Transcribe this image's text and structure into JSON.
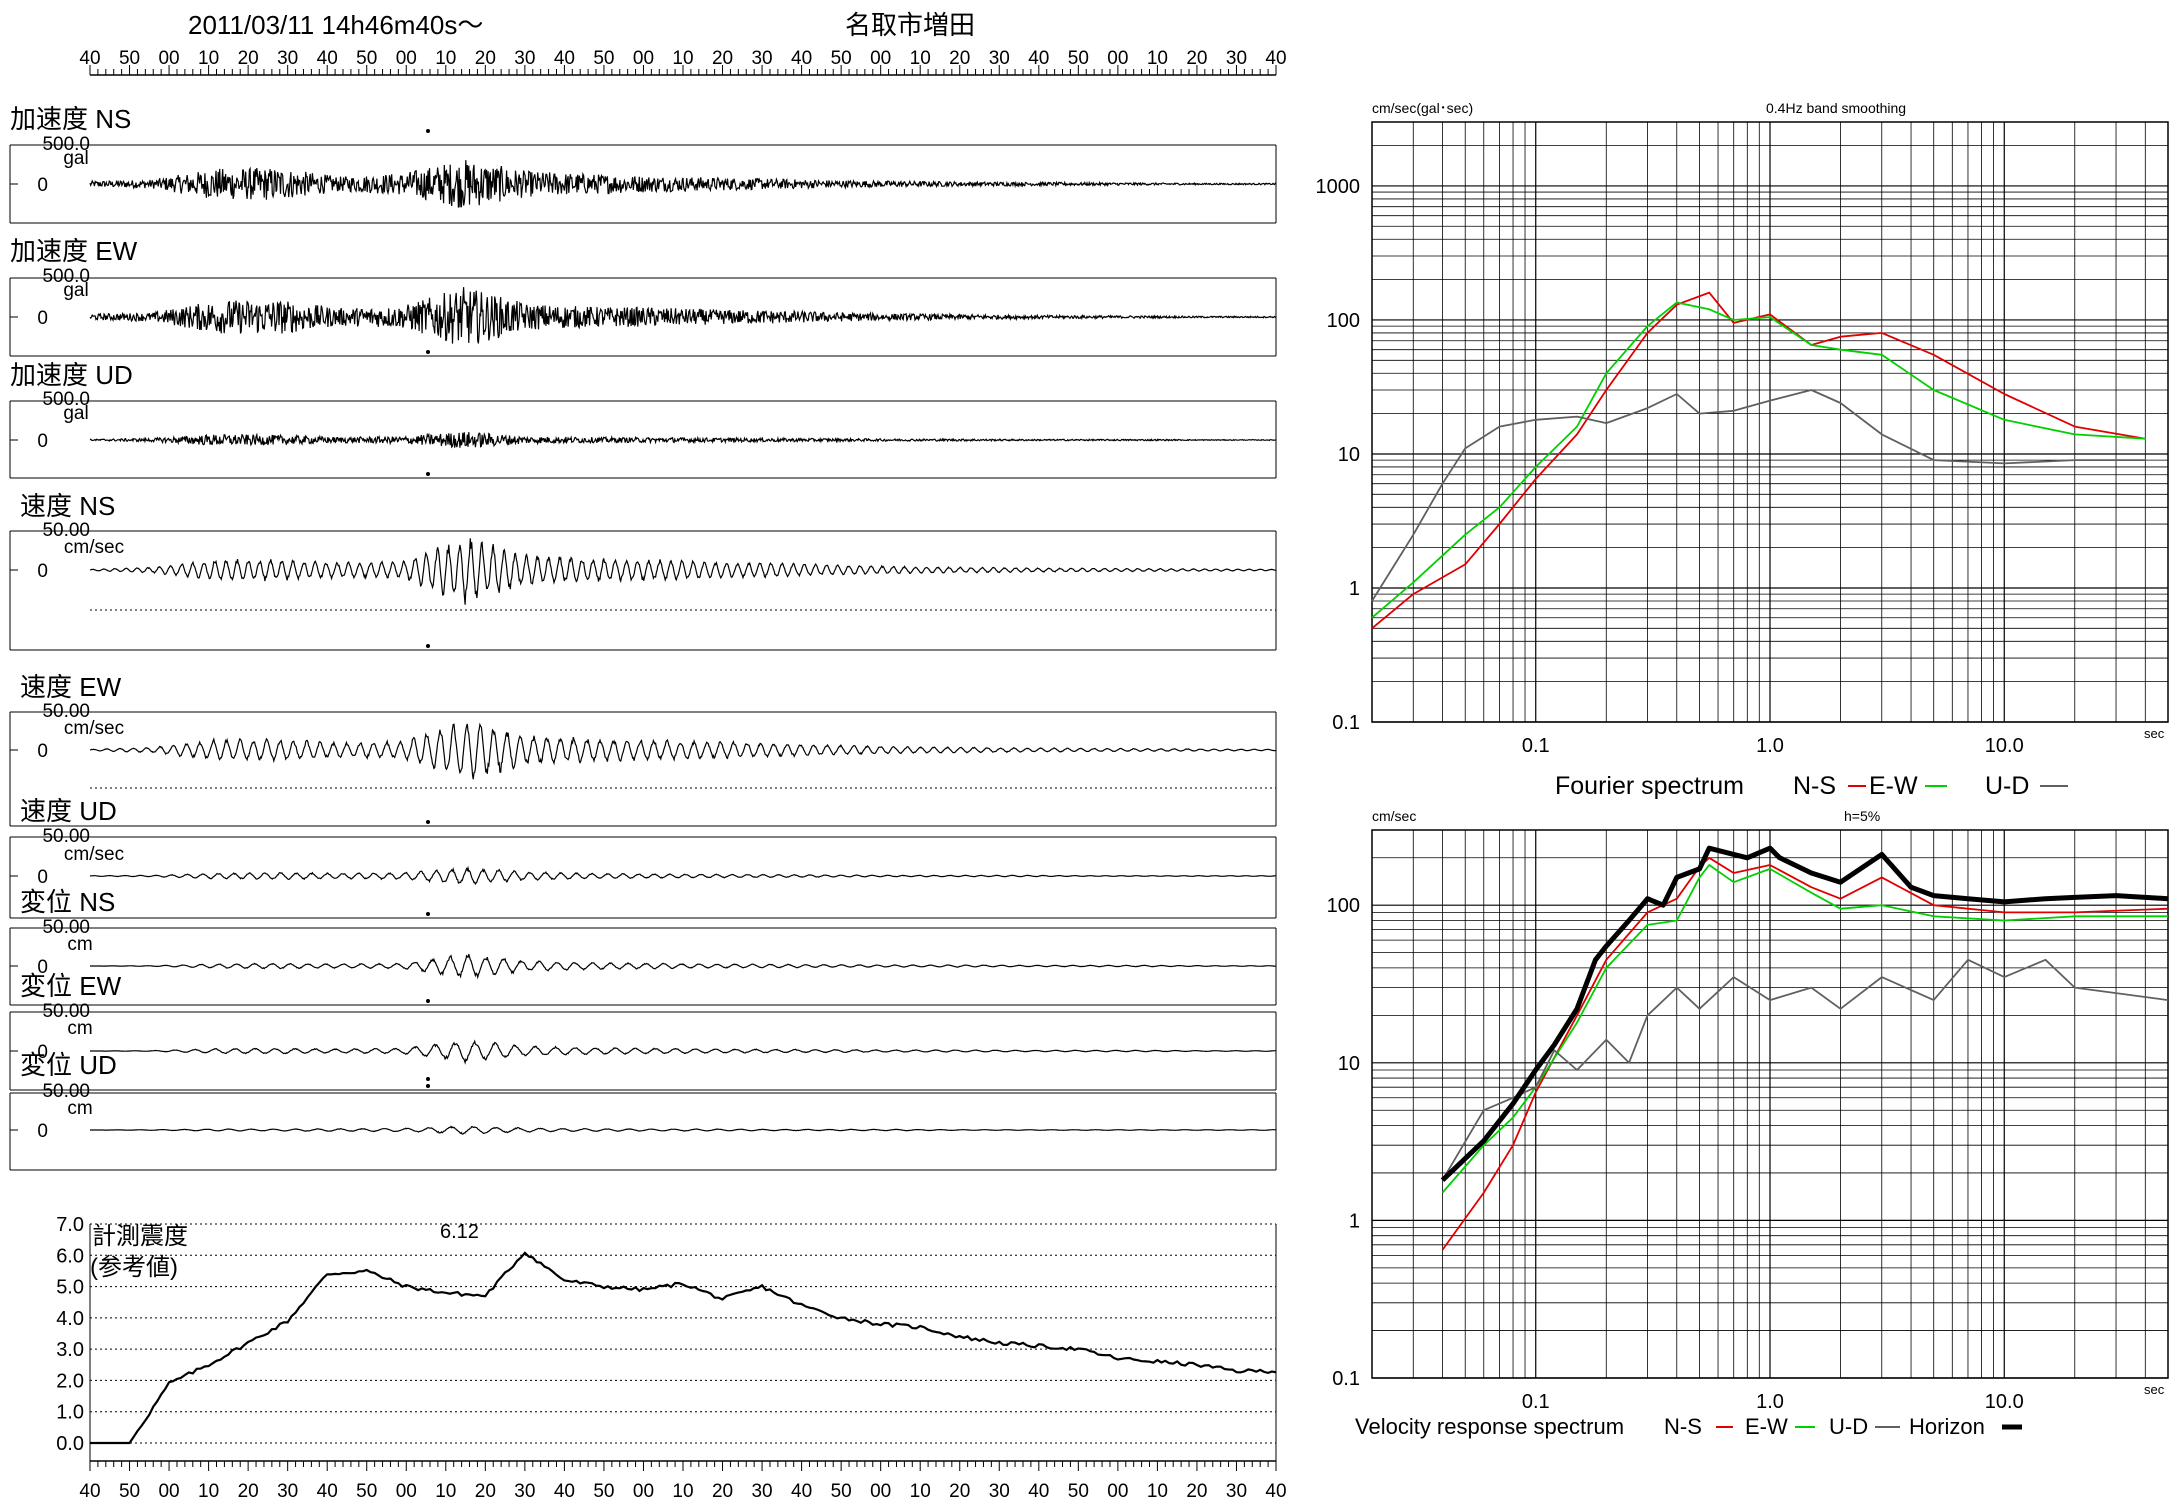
{
  "header": {
    "datetime": "2011/03/11  14h46m40s～",
    "station": "名取市増田"
  },
  "time_ticks": [
    "40",
    "50",
    "00",
    "10",
    "20",
    "30",
    "40",
    "50",
    "00",
    "10",
    "20",
    "30",
    "40",
    "50",
    "00",
    "10",
    "20",
    "30",
    "40",
    "50",
    "00",
    "10",
    "20",
    "30",
    "40",
    "50",
    "00",
    "10",
    "20",
    "30",
    "40"
  ],
  "colors": {
    "ns": "#e00000",
    "ew": "#00d000",
    "ud": "#606060",
    "horizon": "#000000",
    "trace": "#000000"
  },
  "waveforms": [
    {
      "title": "加速度 NS",
      "scale": "500.0",
      "unit": "gal",
      "zero": "0",
      "peak": "top",
      "env": [
        0.08,
        0.12,
        0.42,
        0.45,
        0.2,
        0.3,
        0.68,
        0.35,
        0.28,
        0.22,
        0.18,
        0.14,
        0.1,
        0.08,
        0.06,
        0.05,
        0.04,
        0.03,
        0.02,
        0.02
      ]
    },
    {
      "title": "加速度 EW",
      "scale": "500.0",
      "unit": "gal",
      "zero": "0",
      "peak": "bottom",
      "env": [
        0.08,
        0.12,
        0.45,
        0.48,
        0.24,
        0.3,
        0.82,
        0.36,
        0.28,
        0.26,
        0.2,
        0.18,
        0.12,
        0.09,
        0.07,
        0.05,
        0.04,
        0.03,
        0.02,
        0.02
      ]
    },
    {
      "title": "加速度 UD",
      "scale": "500.0",
      "unit": "gal",
      "zero": "0",
      "peak": "bottom",
      "env": [
        0.02,
        0.05,
        0.16,
        0.14,
        0.08,
        0.1,
        0.24,
        0.1,
        0.08,
        0.07,
        0.06,
        0.05,
        0.04,
        0.03,
        0.03,
        0.02,
        0.02,
        0.02,
        0.01,
        0.01
      ]
    },
    {
      "title": "速度 NS",
      "scale": "50.00",
      "unit": "cm/sec",
      "zero": "0",
      "peak": "bottom",
      "env": [
        0.02,
        0.08,
        0.3,
        0.3,
        0.22,
        0.24,
        0.95,
        0.42,
        0.34,
        0.3,
        0.24,
        0.2,
        0.14,
        0.1,
        0.08,
        0.06,
        0.05,
        0.04,
        0.03,
        0.02
      ]
    },
    {
      "title": "速度 EW",
      "scale": "50.00",
      "unit": "cm/sec",
      "zero": "0",
      "peak": "bottom",
      "env": [
        0.02,
        0.08,
        0.32,
        0.32,
        0.22,
        0.26,
        0.9,
        0.45,
        0.34,
        0.3,
        0.25,
        0.2,
        0.14,
        0.1,
        0.08,
        0.06,
        0.05,
        0.04,
        0.03,
        0.02
      ]
    },
    {
      "title": "速度 UD",
      "scale": "50.00",
      "unit": "cm/sec",
      "zero": "0",
      "peak": "bottom",
      "env": [
        0.01,
        0.02,
        0.08,
        0.1,
        0.08,
        0.1,
        0.25,
        0.12,
        0.08,
        0.06,
        0.05,
        0.04,
        0.03,
        0.02,
        0.02,
        0.02,
        0.01,
        0.01,
        0.01,
        0.01
      ]
    },
    {
      "title": "変位 NS",
      "scale": "50.00",
      "unit": "cm",
      "zero": "0",
      "peak": "bottom",
      "env": [
        0.0,
        0.01,
        0.06,
        0.08,
        0.06,
        0.08,
        0.36,
        0.16,
        0.1,
        0.08,
        0.06,
        0.05,
        0.04,
        0.03,
        0.03,
        0.02,
        0.02,
        0.02,
        0.01,
        0.01
      ]
    },
    {
      "title": "変位 EW",
      "scale": "50.00",
      "unit": "cm",
      "zero": "0",
      "peak": "bottom",
      "env": [
        0.0,
        0.01,
        0.07,
        0.08,
        0.06,
        0.08,
        0.32,
        0.14,
        0.1,
        0.08,
        0.06,
        0.05,
        0.04,
        0.03,
        0.03,
        0.02,
        0.02,
        0.02,
        0.01,
        0.01
      ]
    },
    {
      "title": "変位 UD",
      "scale": "50.00",
      "unit": "cm",
      "zero": "0",
      "peak": "top",
      "env": [
        0.0,
        0.01,
        0.03,
        0.03,
        0.04,
        0.05,
        0.12,
        0.06,
        0.04,
        0.03,
        0.03,
        0.02,
        0.02,
        0.02,
        0.01,
        0.01,
        0.01,
        0.01,
        0.01,
        0.01
      ]
    }
  ],
  "intensity": {
    "title": "計測震度",
    "subtitle": "(参考値)",
    "peak_label": "6.12",
    "yticks": [
      "7.0",
      "6.0",
      "5.0",
      "4.0",
      "3.0",
      "2.0",
      "1.0",
      "0.0"
    ],
    "ylim": [
      0,
      7
    ],
    "values": [
      0.0,
      0.0,
      1.9,
      2.5,
      3.2,
      3.9,
      5.4,
      5.5,
      5.0,
      4.8,
      4.7,
      6.1,
      5.2,
      5.0,
      4.9,
      5.1,
      4.6,
      5.0,
      4.4,
      4.0,
      3.8,
      3.7,
      3.4,
      3.2,
      3.1,
      3.0,
      2.7,
      2.6,
      2.5,
      2.3,
      2.3
    ]
  },
  "fourier": {
    "ylabel": "cm/sec(gal･sec)",
    "note": "0.4Hz band smoothing",
    "xunit": "sec",
    "yticks": [
      "1000",
      "100",
      "10",
      "1",
      "0.1"
    ],
    "xticks": [
      "0.1",
      "1.0",
      "10.0"
    ],
    "legend_title": "Fourier spectrum",
    "legend": [
      "N-S",
      "E-W",
      "U-D"
    ]
  },
  "response": {
    "ylabel": "cm/sec",
    "note": "h=5%",
    "xunit": "sec",
    "yticks": [
      "100",
      "10",
      "1",
      "0.1"
    ],
    "xticks": [
      "0.1",
      "1.0",
      "10.0"
    ],
    "legend_title": "Velocity response spectrum",
    "legend": [
      "N-S",
      "E-W",
      "U-D",
      "Horizon"
    ]
  },
  "chart_data": [
    {
      "type": "line",
      "title": "Fourier spectrum",
      "xlabel": "sec",
      "ylabel": "cm/sec(gal･sec)",
      "log_x": true,
      "log_y": true,
      "xlim": [
        0.02,
        50
      ],
      "ylim": [
        0.1,
        3000
      ],
      "series": [
        {
          "name": "N-S",
          "x": [
            0.02,
            0.03,
            0.05,
            0.07,
            0.1,
            0.15,
            0.2,
            0.3,
            0.4,
            0.55,
            0.7,
            1.0,
            1.5,
            2.0,
            3.0,
            5.0,
            10.0,
            20.0,
            40.0
          ],
          "y": [
            0.5,
            0.9,
            1.5,
            3.0,
            6.5,
            14,
            30,
            80,
            130,
            160,
            95,
            110,
            65,
            75,
            80,
            55,
            28,
            16,
            13
          ]
        },
        {
          "name": "E-W",
          "x": [
            0.02,
            0.03,
            0.05,
            0.07,
            0.1,
            0.15,
            0.2,
            0.3,
            0.4,
            0.55,
            0.7,
            1.0,
            1.5,
            2.0,
            3.0,
            5.0,
            10.0,
            20.0,
            40.0
          ],
          "y": [
            0.6,
            1.1,
            2.5,
            4.0,
            8.0,
            16,
            40,
            90,
            135,
            120,
            100,
            105,
            65,
            60,
            55,
            30,
            18,
            14,
            13
          ]
        },
        {
          "name": "U-D",
          "x": [
            0.02,
            0.03,
            0.04,
            0.05,
            0.07,
            0.1,
            0.15,
            0.2,
            0.3,
            0.4,
            0.5,
            0.7,
            1.0,
            1.5,
            2.0,
            3.0,
            5.0,
            10.0,
            20.0,
            40.0
          ],
          "y": [
            0.8,
            2.5,
            6.0,
            11,
            16,
            18,
            19,
            17,
            22,
            28,
            20,
            21,
            25,
            30,
            24,
            14,
            9,
            8.5,
            9,
            9
          ]
        }
      ]
    },
    {
      "type": "line",
      "title": "Velocity response spectrum",
      "xlabel": "sec",
      "ylabel": "cm/sec",
      "log_x": true,
      "log_y": true,
      "xlim": [
        0.02,
        50
      ],
      "ylim": [
        0.1,
        300
      ],
      "series": [
        {
          "name": "N-S",
          "x": [
            0.04,
            0.06,
            0.08,
            0.1,
            0.15,
            0.2,
            0.3,
            0.4,
            0.5,
            0.55,
            0.7,
            1.0,
            1.5,
            2.0,
            3.0,
            5.0,
            10.0,
            20.0,
            50.0
          ],
          "y": [
            0.65,
            1.5,
            3.0,
            6.5,
            20,
            45,
            90,
            110,
            175,
            200,
            160,
            180,
            130,
            110,
            150,
            100,
            90,
            90,
            95
          ]
        },
        {
          "name": "E-W",
          "x": [
            0.04,
            0.06,
            0.08,
            0.1,
            0.15,
            0.2,
            0.3,
            0.4,
            0.5,
            0.55,
            0.7,
            1.0,
            1.5,
            2.0,
            3.0,
            5.0,
            10.0,
            20.0,
            50.0
          ],
          "y": [
            1.5,
            3.0,
            4.5,
            7.0,
            18,
            40,
            75,
            80,
            150,
            180,
            140,
            170,
            120,
            95,
            100,
            85,
            80,
            85,
            85
          ]
        },
        {
          "name": "U-D",
          "x": [
            0.04,
            0.06,
            0.08,
            0.1,
            0.12,
            0.15,
            0.2,
            0.25,
            0.3,
            0.4,
            0.5,
            0.7,
            1.0,
            1.5,
            2.0,
            3.0,
            5.0,
            7.0,
            10.0,
            15.0,
            20.0,
            50.0
          ],
          "y": [
            1.8,
            5.0,
            6.0,
            7.0,
            12,
            9,
            14,
            10,
            20,
            30,
            22,
            35,
            25,
            30,
            22,
            35,
            25,
            45,
            35,
            45,
            30,
            25
          ]
        },
        {
          "name": "Horizon",
          "x": [
            0.04,
            0.06,
            0.08,
            0.1,
            0.12,
            0.15,
            0.18,
            0.2,
            0.25,
            0.3,
            0.35,
            0.4,
            0.5,
            0.55,
            0.7,
            0.8,
            1.0,
            1.1,
            1.5,
            2.0,
            2.5,
            3.0,
            4.0,
            5.0,
            7.0,
            10.0,
            15.0,
            20.0,
            30.0,
            50.0
          ],
          "y": [
            1.8,
            3.2,
            5.5,
            9,
            13,
            22,
            45,
            55,
            80,
            110,
            100,
            150,
            170,
            230,
            210,
            200,
            230,
            200,
            160,
            140,
            175,
            210,
            130,
            115,
            110,
            105,
            110,
            112,
            115,
            110
          ]
        }
      ]
    }
  ]
}
